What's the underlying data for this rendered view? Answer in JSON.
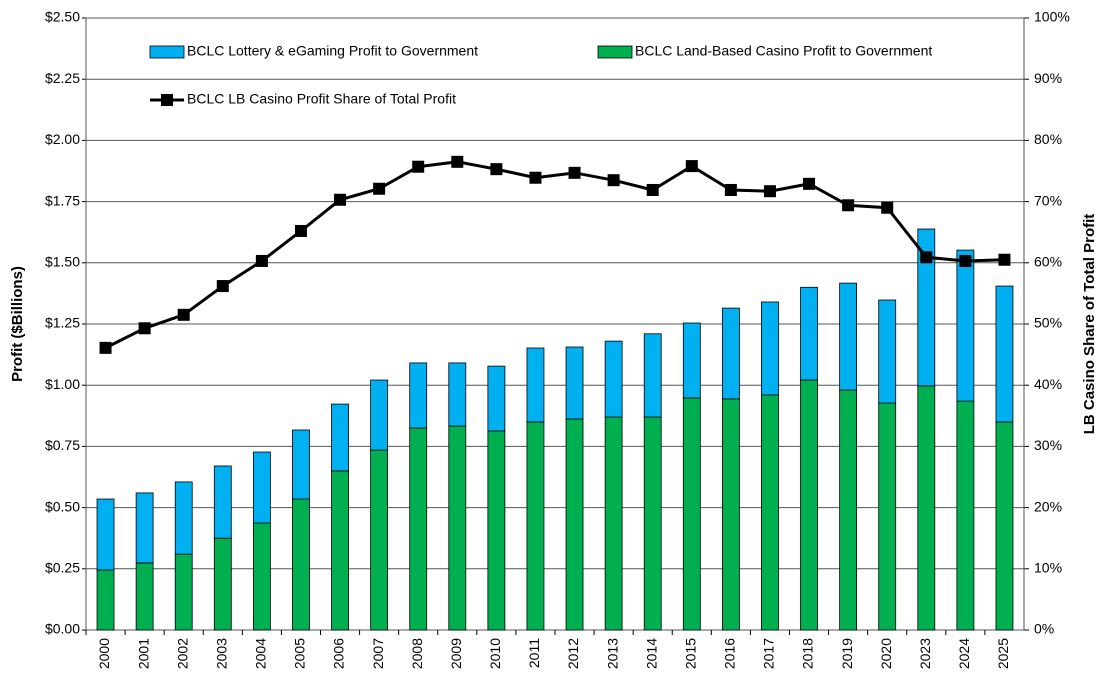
{
  "chart_data": {
    "type": "bar",
    "stacked": true,
    "categories": [
      "2000",
      "2001",
      "2002",
      "2003",
      "2004",
      "2005",
      "2006",
      "2007",
      "2008",
      "2009",
      "2010",
      "2011",
      "2012",
      "2013",
      "2014",
      "2015",
      "2016",
      "2017",
      "2018",
      "2019",
      "2020",
      "2023",
      "2024",
      "2025"
    ],
    "series": [
      {
        "name": "BCLC Land-Based Casino Profit to Government",
        "color": "#00b050",
        "type": "bar",
        "values": [
          0.245,
          0.274,
          0.31,
          0.375,
          0.437,
          0.535,
          0.65,
          0.735,
          0.825,
          0.833,
          0.813,
          0.85,
          0.862,
          0.87,
          0.87,
          0.948,
          0.944,
          0.96,
          1.021,
          0.98,
          0.927,
          0.997,
          0.935,
          0.85
        ]
      },
      {
        "name": "BCLC Lottery & eGaming Profit to Government",
        "color": "#00b0f0",
        "type": "bar",
        "values": [
          0.29,
          0.286,
          0.295,
          0.295,
          0.29,
          0.282,
          0.273,
          0.286,
          0.266,
          0.258,
          0.265,
          0.302,
          0.294,
          0.31,
          0.34,
          0.306,
          0.371,
          0.38,
          0.379,
          0.437,
          0.421,
          0.641,
          0.617,
          0.555
        ]
      },
      {
        "name": "BCLC LB Casino Profit Share of Total Profit",
        "color": "#000000",
        "type": "line",
        "axis": "y2",
        "values": [
          46.1,
          49.3,
          51.5,
          56.2,
          60.3,
          65.2,
          70.3,
          72.1,
          75.7,
          76.5,
          75.3,
          73.9,
          74.7,
          73.5,
          71.9,
          75.8,
          71.9,
          71.7,
          72.9,
          69.4,
          69.0,
          60.9,
          60.3,
          60.5
        ]
      }
    ],
    "ylabel": "Profit ($Billions)",
    "y2label": "LB Casino Share of Total Profit",
    "ylim": [
      0,
      2.5
    ],
    "yticks": [
      {
        "value": 0,
        "label": "$0.00"
      },
      {
        "value": 0.25,
        "label": "$0.25"
      },
      {
        "value": 0.5,
        "label": "$0.50"
      },
      {
        "value": 0.75,
        "label": "$0.75"
      },
      {
        "value": 1,
        "label": "$1.00"
      },
      {
        "value": 1.25,
        "label": "$1.25"
      },
      {
        "value": 1.5,
        "label": "$1.50"
      },
      {
        "value": 1.75,
        "label": "$1.75"
      },
      {
        "value": 2,
        "label": "$2.00"
      },
      {
        "value": 2.25,
        "label": "$2.25"
      },
      {
        "value": 2.5,
        "label": "$2.50"
      }
    ],
    "y2lim": [
      0,
      100
    ],
    "y2ticks": [
      {
        "value": 0,
        "label": "0%"
      },
      {
        "value": 10,
        "label": "10%"
      },
      {
        "value": 20,
        "label": "20%"
      },
      {
        "value": 30,
        "label": "30%"
      },
      {
        "value": 40,
        "label": "40%"
      },
      {
        "value": 50,
        "label": "50%"
      },
      {
        "value": 60,
        "label": "60%"
      },
      {
        "value": 70,
        "label": "70%"
      },
      {
        "value": 80,
        "label": "80%"
      },
      {
        "value": 90,
        "label": "90%"
      },
      {
        "value": 100,
        "label": "100%"
      }
    ],
    "grid": true
  }
}
